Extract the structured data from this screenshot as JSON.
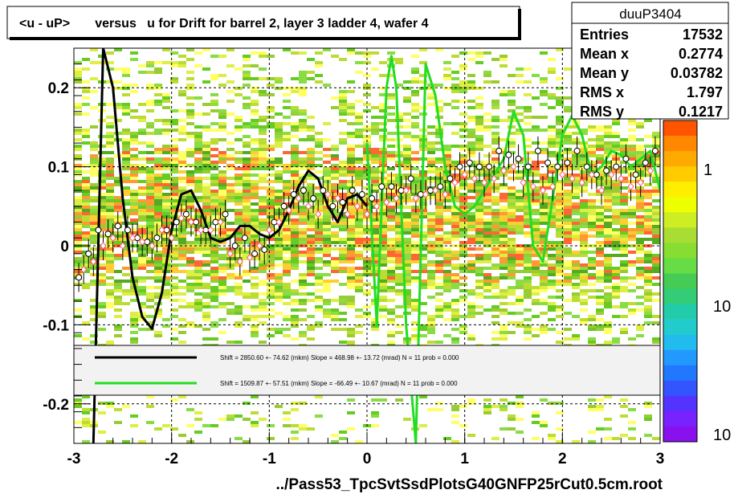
{
  "chart_data": {
    "type": "scatter",
    "title": "<u - uP>       versus   u for Drift for barrel 2, layer 3 ladder 4, wafer 4",
    "xlabel": "../Pass53_TpcSvtSsdPlotsG40GNFP25rCut0.5cm.root",
    "ylabel": "",
    "xlim": [
      -3,
      3
    ],
    "ylim": [
      -0.25,
      0.25
    ],
    "x_ticks": [
      "-3",
      "-2",
      "-1",
      "0",
      "1",
      "2",
      "3"
    ],
    "y_ticks": [
      "-0.2",
      "-0.1",
      "0",
      "0.1",
      "0.2"
    ],
    "grid": true,
    "colorbar": {
      "scale": "log",
      "labels": [
        "1",
        "10",
        "10"
      ]
    },
    "stats": {
      "name": "duuP3404",
      "rows": [
        {
          "label": "Entries",
          "value": "17532"
        },
        {
          "label": "Mean x",
          "value": "0.2774"
        },
        {
          "label": "Mean y",
          "value": "0.03782"
        },
        {
          "label": "RMS x",
          "value": "1.797"
        },
        {
          "label": "RMS y",
          "value": "0.1217"
        }
      ]
    },
    "legend": {
      "placement": "bottom",
      "entries": [
        {
          "color": "#000000",
          "text": "Shift =  2850.60 +- 74.62 (mkm) Slope =   468.98 +- 13.72 (mrad)  N = 11 prob = 0.000"
        },
        {
          "color": "#22dd22",
          "text": "Shift =  1509.87 +- 57.51 (mkm) Slope =   -66.49 +- 10.67 (mrad)  N = 11 prob = 0.000"
        }
      ]
    },
    "series": [
      {
        "marker": "open-circle-black",
        "x": [
          -2.95,
          -2.85,
          -2.75,
          -2.65,
          -2.55,
          -2.45,
          -2.35,
          -2.25,
          -2.15,
          -2.05,
          -1.95,
          -1.85,
          -1.75,
          -1.65,
          -1.55,
          -1.45,
          -1.35,
          -1.25,
          -1.15,
          -1.05,
          -0.95,
          -0.85,
          -0.75,
          -0.65,
          -0.55,
          -0.45,
          -0.35,
          -0.25,
          -0.15,
          -0.05,
          0.05,
          0.15,
          0.25,
          0.35,
          0.45,
          0.55,
          0.65,
          0.75,
          0.85,
          0.95,
          1.05,
          1.15,
          1.25,
          1.35,
          1.45,
          1.55,
          1.65,
          1.75,
          1.85,
          1.95,
          2.05,
          2.15,
          2.25,
          2.35,
          2.45,
          2.55,
          2.65,
          2.75,
          2.85,
          2.95
        ],
        "y": [
          -0.04,
          -0.01,
          0.02,
          0.015,
          0.025,
          0.02,
          0.01,
          0.005,
          0.01,
          0.02,
          0.03,
          0.04,
          0.03,
          0.02,
          0.03,
          0.04,
          0.0,
          0.01,
          -0.01,
          -0.005,
          0.03,
          0.05,
          0.065,
          0.07,
          0.06,
          0.07,
          0.05,
          0.055,
          0.07,
          0.065,
          0.06,
          0.075,
          0.075,
          0.07,
          0.085,
          0.065,
          0.07,
          0.075,
          0.085,
          0.1,
          0.105,
          0.1,
          0.1,
          0.12,
          0.115,
          0.11,
          0.1,
          0.12,
          0.105,
          0.1,
          0.105,
          0.12,
          0.1,
          0.09,
          0.095,
          0.1,
          0.11,
          0.09,
          0.105,
          0.12
        ]
      },
      {
        "marker": "open-diamond-pink",
        "x": [
          -2.9,
          -2.8,
          -2.7,
          -2.6,
          -2.5,
          -2.4,
          -2.3,
          -2.2,
          -2.1,
          -2.0,
          -1.9,
          -1.8,
          -1.7,
          -1.6,
          -1.5,
          -1.4,
          -1.3,
          -1.2,
          -1.1,
          -1.0,
          -0.9,
          -0.8,
          -0.7,
          -0.6,
          -0.5,
          -0.4,
          -0.3,
          -0.2,
          -0.1,
          0.0,
          0.1,
          0.2,
          0.3,
          0.4,
          0.5,
          0.6,
          0.7,
          0.8,
          0.9,
          1.0,
          1.1,
          1.2,
          1.3,
          1.4,
          1.5,
          1.6,
          1.7,
          1.8,
          1.9,
          2.0,
          2.1,
          2.2,
          2.3,
          2.4,
          2.5,
          2.6,
          2.7,
          2.8,
          2.9
        ],
        "y": [
          -0.03,
          -0.02,
          0.0,
          0.01,
          0.0,
          0.01,
          0.005,
          0.0,
          0.02,
          0.01,
          0.035,
          0.03,
          0.02,
          0.02,
          0.03,
          -0.01,
          -0.02,
          -0.015,
          0.0,
          0.02,
          0.03,
          0.045,
          0.06,
          0.05,
          0.04,
          0.065,
          0.06,
          0.04,
          0.05,
          0.04,
          0.05,
          0.055,
          0.06,
          0.07,
          0.06,
          0.065,
          0.07,
          0.065,
          0.08,
          0.09,
          0.085,
          0.08,
          0.085,
          0.095,
          0.1,
          0.08,
          0.075,
          0.07,
          0.075,
          0.09,
          0.085,
          0.08,
          0.09,
          0.07,
          0.09,
          0.085,
          0.075,
          0.08,
          0.095
        ]
      }
    ],
    "fits": [
      {
        "color": "#000000",
        "x": [
          -2.8,
          -2.7,
          -2.6,
          -2.5,
          -2.4,
          -2.3,
          -2.2,
          -2.1,
          -2.0,
          -1.9,
          -1.8,
          -1.7,
          -1.6,
          -1.5,
          -1.4,
          -1.3,
          -1.2,
          -1.1,
          -1.0,
          -0.9,
          -0.8,
          -0.7,
          -0.6,
          -0.5,
          -0.4,
          -0.3,
          -0.2,
          -0.1,
          0.0
        ],
        "y": [
          -0.25,
          0.25,
          0.2,
          0.06,
          -0.04,
          -0.09,
          -0.105,
          -0.06,
          0.02,
          0.065,
          0.07,
          0.045,
          0.01,
          0.005,
          0.01,
          0.025,
          0.025,
          0.015,
          0.01,
          0.02,
          0.045,
          0.075,
          0.095,
          0.085,
          0.05,
          0.03,
          0.06,
          0.065,
          0.05
        ]
      },
      {
        "color": "#22dd22",
        "x": [
          0.0,
          0.1,
          0.2,
          0.25,
          0.3,
          0.4,
          0.5,
          0.6,
          0.7,
          0.8,
          0.9,
          1.0,
          1.1,
          1.2,
          1.3,
          1.4,
          1.5,
          1.6,
          1.7,
          1.8,
          1.9,
          2.0,
          2.1,
          2.2,
          2.3,
          2.4,
          2.5,
          2.6,
          2.7,
          2.8,
          2.9,
          3.0
        ],
        "y": [
          0.13,
          -0.1,
          0.2,
          0.24,
          0.2,
          -0.1,
          -0.25,
          0.23,
          0.19,
          0.1,
          0.05,
          0.04,
          0.05,
          0.07,
          0.09,
          0.11,
          0.17,
          0.14,
          0.0,
          -0.02,
          0.06,
          0.14,
          0.165,
          0.14,
          0.09,
          0.1,
          0.12,
          0.115,
          0.1,
          0.11,
          0.12,
          0.07
        ]
      }
    ]
  }
}
